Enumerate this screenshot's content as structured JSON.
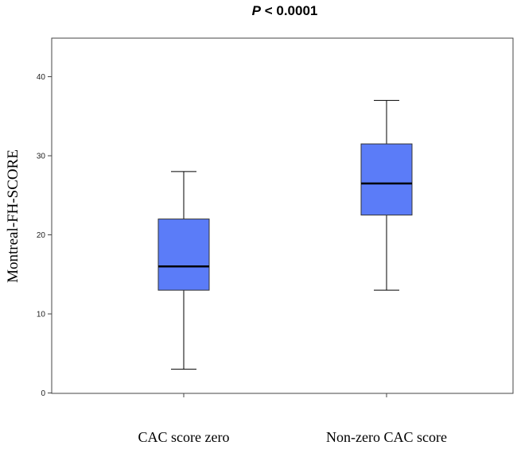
{
  "chart_data": {
    "type": "boxplot",
    "title_prefix": "P",
    "title_suffix": " < 0.0001",
    "xlabel": "",
    "ylabel": "Montreal-FH-SCORE",
    "ylim": [
      0,
      45
    ],
    "yticks": [
      0,
      10,
      20,
      30,
      40
    ],
    "grid": false,
    "categories": [
      "CAC score zero",
      "Non-zero CAC score"
    ],
    "boxes": [
      {
        "whisker_low": 3,
        "q1": 13,
        "median": 16,
        "q3": 22,
        "whisker_high": 28
      },
      {
        "whisker_low": 13,
        "q1": 22.5,
        "median": 26.5,
        "q3": 31.5,
        "whisker_high": 37
      }
    ],
    "box_color": "#5b7cf8",
    "axis_color": "#444444"
  }
}
